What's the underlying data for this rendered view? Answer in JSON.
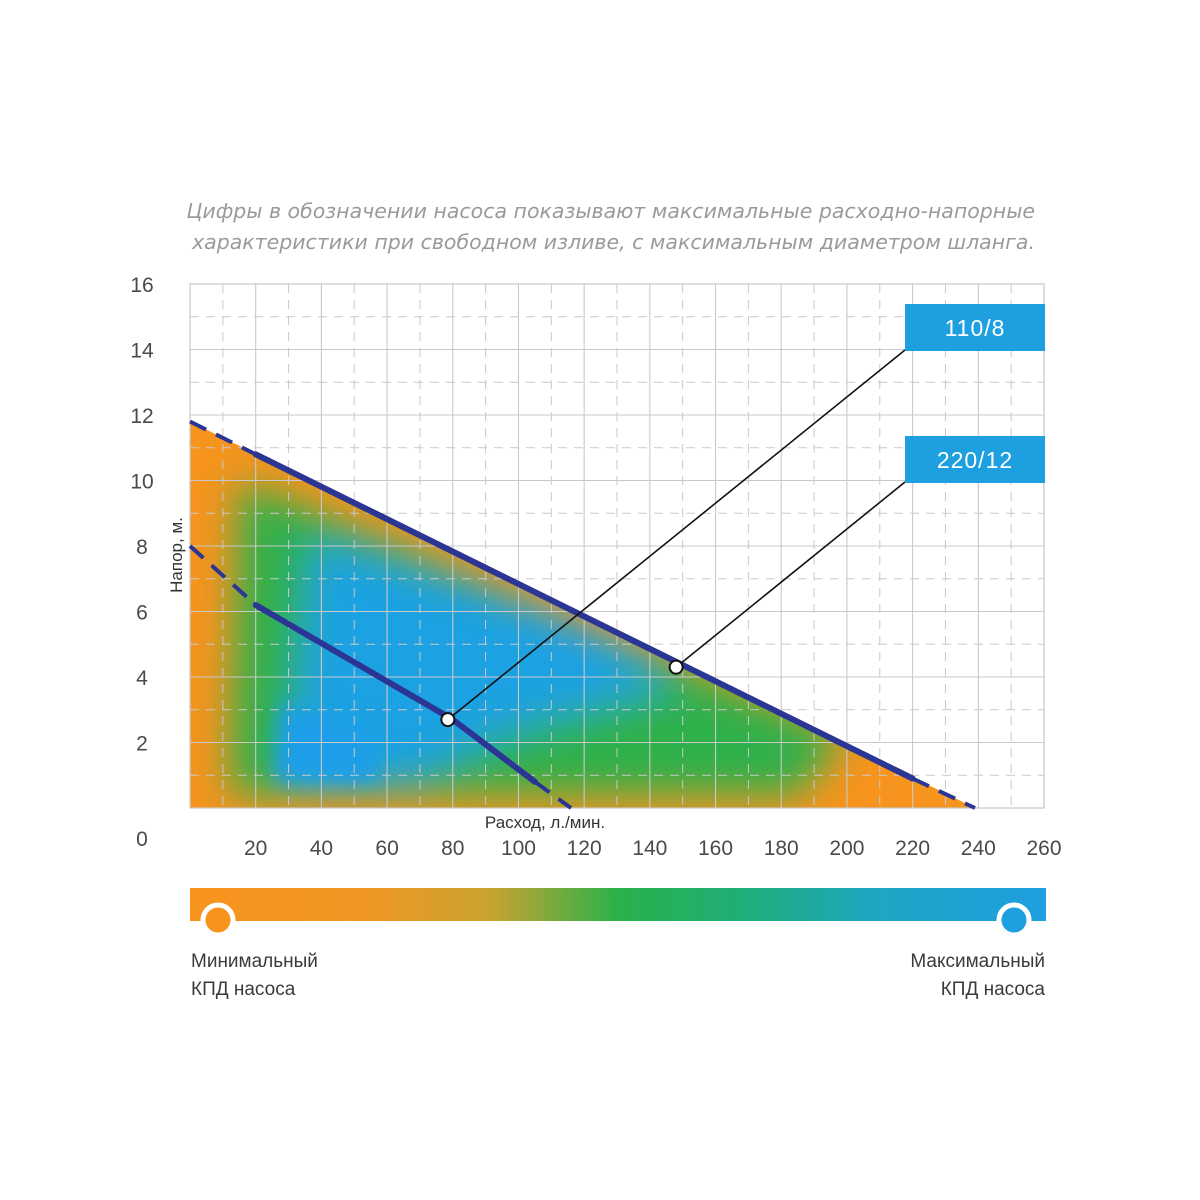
{
  "caption": {
    "line1": "Цифры в обозначении насоса показывают максимальные расходно-напорные",
    "line2": "характеристики при свободном изливе, с максимальным диаметром шланга."
  },
  "chart_data": {
    "type": "line",
    "xlabel": "Расход, л./мин.",
    "ylabel": "Напор, м.",
    "xlim": [
      0,
      260
    ],
    "ylim": [
      0,
      16
    ],
    "x_ticks": [
      "20",
      "40",
      "60",
      "80",
      "100",
      "120",
      "140",
      "160",
      "180",
      "200",
      "220",
      "240",
      "260"
    ],
    "y_ticks": [
      "0",
      "2",
      "4",
      "6",
      "8",
      "10",
      "12",
      "14",
      "16"
    ],
    "grid": true,
    "series": [
      {
        "name": "110/8",
        "color": "#2b3593",
        "solid": [
          [
            20,
            6.2
          ],
          [
            80,
            2.7
          ],
          [
            105,
            0.8
          ]
        ],
        "dashed_start": [
          [
            0,
            8.0
          ],
          [
            20,
            6.2
          ]
        ],
        "dashed_end": [
          [
            105,
            0.8
          ],
          [
            116,
            0.0
          ]
        ],
        "marker": [
          78.5,
          2.7
        ]
      },
      {
        "name": "220/12",
        "color": "#2b3593",
        "solid": [
          [
            20,
            10.8
          ],
          [
            220,
            0.9
          ]
        ],
        "dashed_start": [
          [
            0,
            11.8
          ],
          [
            20,
            10.8
          ]
        ],
        "dashed_end": [
          [
            220,
            0.9
          ],
          [
            239,
            0.0
          ]
        ],
        "marker": [
          148,
          4.3
        ]
      }
    ],
    "colorbar": {
      "min_label_line1": "Минимальный",
      "min_label_line2": "КПД насоса",
      "max_label_line1": "Максимальный",
      "max_label_line2": "КПД насоса",
      "min_color": "#f7941d",
      "mid_color": "#2bb14a",
      "max_color": "#1ea0e0"
    },
    "label_color": "#1ea0e0"
  }
}
